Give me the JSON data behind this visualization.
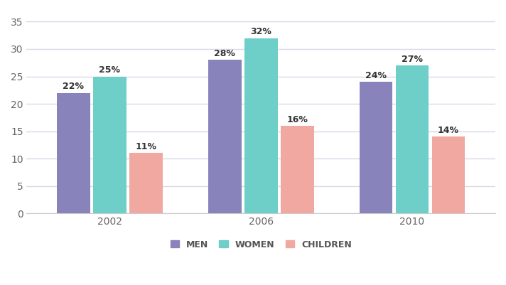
{
  "years": [
    "2002",
    "2006",
    "2010"
  ],
  "men": [
    22,
    28,
    24
  ],
  "women": [
    25,
    32,
    27
  ],
  "children": [
    11,
    16,
    14
  ],
  "bar_colors": {
    "men": "#8884bb",
    "women": "#6ecec8",
    "children": "#f0a8a0"
  },
  "ylim": [
    0,
    37
  ],
  "yticks": [
    0,
    5,
    10,
    15,
    20,
    25,
    30,
    35
  ],
  "bar_width": 0.22,
  "background_color": "#ffffff",
  "plot_bg_color": "#ffffff",
  "grid_color": "#d8d8e8",
  "label_fontsize": 9,
  "tick_fontsize": 10,
  "legend_labels": [
    "MEN",
    "WOMEN",
    "CHILDREN"
  ],
  "annotation_fontsize": 9
}
